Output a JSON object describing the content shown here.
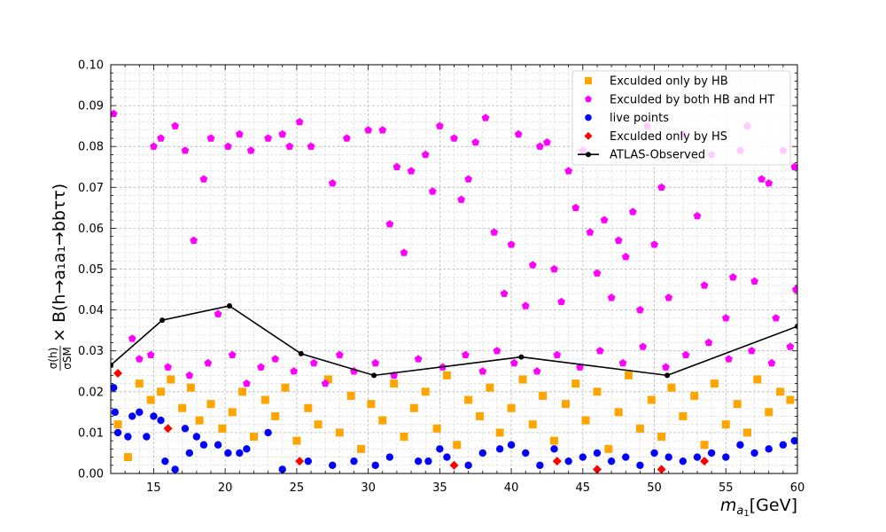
{
  "chart_data": {
    "type": "scatter",
    "xlabel": "m_{a1}[GeV]",
    "ylabel": "σ(h)/σ_SM × B(h→a1a1→bbττ)",
    "xlim": [
      12,
      60
    ],
    "ylim": [
      0.0,
      0.1
    ],
    "xticks": [
      "15",
      "20",
      "25",
      "30",
      "35",
      "40",
      "45",
      "50",
      "55",
      "60"
    ],
    "yticks": [
      "0.00",
      "0.01",
      "0.02",
      "0.03",
      "0.04",
      "0.05",
      "0.06",
      "0.07",
      "0.08",
      "0.09",
      "0.10"
    ],
    "grid": "major and minor, dashed",
    "legend_position": "top-right",
    "series": [
      {
        "name": "Exculded only by HB",
        "marker": "square",
        "color": "#FFA500",
        "note": "dense band, y roughly 0.000-0.025 across full x range",
        "points": [
          [
            12.5,
            0.012
          ],
          [
            13.2,
            0.004
          ],
          [
            14.0,
            0.022
          ],
          [
            14.8,
            0.018
          ],
          [
            15.5,
            0.02
          ],
          [
            16.2,
            0.023
          ],
          [
            17.0,
            0.016
          ],
          [
            17.6,
            0.021
          ],
          [
            18.2,
            0.013
          ],
          [
            19.0,
            0.017
          ],
          [
            19.8,
            0.011
          ],
          [
            20.5,
            0.015
          ],
          [
            21.2,
            0.02
          ],
          [
            22.0,
            0.009
          ],
          [
            22.8,
            0.018
          ],
          [
            23.5,
            0.014
          ],
          [
            24.2,
            0.021
          ],
          [
            25.0,
            0.008
          ],
          [
            25.8,
            0.016
          ],
          [
            26.5,
            0.012
          ],
          [
            27.2,
            0.023
          ],
          [
            28.0,
            0.01
          ],
          [
            28.8,
            0.019
          ],
          [
            29.5,
            0.006
          ],
          [
            30.2,
            0.017
          ],
          [
            31.0,
            0.013
          ],
          [
            31.8,
            0.022
          ],
          [
            32.5,
            0.009
          ],
          [
            33.2,
            0.016
          ],
          [
            34.0,
            0.02
          ],
          [
            34.8,
            0.011
          ],
          [
            35.5,
            0.024
          ],
          [
            36.2,
            0.007
          ],
          [
            37.0,
            0.018
          ],
          [
            37.8,
            0.014
          ],
          [
            38.5,
            0.021
          ],
          [
            39.2,
            0.01
          ],
          [
            40.0,
            0.016
          ],
          [
            40.8,
            0.023
          ],
          [
            41.5,
            0.012
          ],
          [
            42.2,
            0.019
          ],
          [
            43.0,
            0.008
          ],
          [
            43.8,
            0.017
          ],
          [
            44.5,
            0.022
          ],
          [
            45.2,
            0.013
          ],
          [
            46.0,
            0.02
          ],
          [
            46.8,
            0.006
          ],
          [
            47.5,
            0.015
          ],
          [
            48.2,
            0.024
          ],
          [
            49.0,
            0.011
          ],
          [
            49.8,
            0.018
          ],
          [
            50.5,
            0.009
          ],
          [
            51.2,
            0.021
          ],
          [
            52.0,
            0.014
          ],
          [
            52.8,
            0.019
          ],
          [
            53.5,
            0.007
          ],
          [
            54.2,
            0.022
          ],
          [
            55.0,
            0.012
          ],
          [
            55.8,
            0.017
          ],
          [
            56.5,
            0.01
          ],
          [
            57.2,
            0.023
          ],
          [
            58.0,
            0.015
          ],
          [
            58.8,
            0.02
          ],
          [
            59.5,
            0.018
          ]
        ]
      },
      {
        "name": "Exculded by both HB and HT",
        "marker": "pentagon",
        "color": "#FF00FF",
        "note": "scattered over y roughly 0.02-0.09, dense near 0.025-0.03",
        "points": [
          [
            12.2,
            0.088
          ],
          [
            13.5,
            0.033
          ],
          [
            14.0,
            0.028
          ],
          [
            15.0,
            0.08
          ],
          [
            15.5,
            0.082
          ],
          [
            16.5,
            0.085
          ],
          [
            17.2,
            0.079
          ],
          [
            17.8,
            0.057
          ],
          [
            18.5,
            0.072
          ],
          [
            19.0,
            0.082
          ],
          [
            19.5,
            0.039
          ],
          [
            20.2,
            0.08
          ],
          [
            21.0,
            0.083
          ],
          [
            21.8,
            0.079
          ],
          [
            23.0,
            0.082
          ],
          [
            24.0,
            0.083
          ],
          [
            24.5,
            0.08
          ],
          [
            25.2,
            0.086
          ],
          [
            26.0,
            0.08
          ],
          [
            27.5,
            0.071
          ],
          [
            28.5,
            0.082
          ],
          [
            30.0,
            0.084
          ],
          [
            31.0,
            0.084
          ],
          [
            31.5,
            0.061
          ],
          [
            32.0,
            0.075
          ],
          [
            32.5,
            0.054
          ],
          [
            33.0,
            0.074
          ],
          [
            34.0,
            0.078
          ],
          [
            34.5,
            0.069
          ],
          [
            35.0,
            0.085
          ],
          [
            36.0,
            0.082
          ],
          [
            36.5,
            0.067
          ],
          [
            37.0,
            0.072
          ],
          [
            37.5,
            0.081
          ],
          [
            38.2,
            0.087
          ],
          [
            38.8,
            0.059
          ],
          [
            39.5,
            0.044
          ],
          [
            40.0,
            0.056
          ],
          [
            40.5,
            0.083
          ],
          [
            41.0,
            0.041
          ],
          [
            41.5,
            0.051
          ],
          [
            42.0,
            0.08
          ],
          [
            42.5,
            0.081
          ],
          [
            43.0,
            0.05
          ],
          [
            43.5,
            0.042
          ],
          [
            44.0,
            0.074
          ],
          [
            44.5,
            0.065
          ],
          [
            45.0,
            0.079
          ],
          [
            45.5,
            0.059
          ],
          [
            46.0,
            0.049
          ],
          [
            46.5,
            0.062
          ],
          [
            47.0,
            0.043
          ],
          [
            47.5,
            0.057
          ],
          [
            48.0,
            0.053
          ],
          [
            48.5,
            0.064
          ],
          [
            49.0,
            0.04
          ],
          [
            49.5,
            0.085
          ],
          [
            50.0,
            0.056
          ],
          [
            50.5,
            0.07
          ],
          [
            51.0,
            0.043
          ],
          [
            52.0,
            0.083
          ],
          [
            53.0,
            0.063
          ],
          [
            53.5,
            0.046
          ],
          [
            54.0,
            0.078
          ],
          [
            55.0,
            0.038
          ],
          [
            55.5,
            0.048
          ],
          [
            56.0,
            0.079
          ],
          [
            56.5,
            0.085
          ],
          [
            57.0,
            0.047
          ],
          [
            57.5,
            0.072
          ],
          [
            58.0,
            0.071
          ],
          [
            58.5,
            0.038
          ],
          [
            59.0,
            0.079
          ],
          [
            59.8,
            0.075
          ],
          [
            59.9,
            0.045
          ],
          [
            14.8,
            0.029
          ],
          [
            16.0,
            0.026
          ],
          [
            17.5,
            0.024
          ],
          [
            18.8,
            0.027
          ],
          [
            20.5,
            0.029
          ],
          [
            21.5,
            0.022
          ],
          [
            22.5,
            0.026
          ],
          [
            23.5,
            0.028
          ],
          [
            24.8,
            0.025
          ],
          [
            26.2,
            0.027
          ],
          [
            27.0,
            0.022
          ],
          [
            28.0,
            0.029
          ],
          [
            29.0,
            0.025
          ],
          [
            30.5,
            0.027
          ],
          [
            31.8,
            0.024
          ],
          [
            33.5,
            0.028
          ],
          [
            35.2,
            0.026
          ],
          [
            36.8,
            0.029
          ],
          [
            38.0,
            0.025
          ],
          [
            39.0,
            0.03
          ],
          [
            40.2,
            0.027
          ],
          [
            41.8,
            0.025
          ],
          [
            43.2,
            0.029
          ],
          [
            44.8,
            0.026
          ],
          [
            46.2,
            0.03
          ],
          [
            47.8,
            0.027
          ],
          [
            49.2,
            0.031
          ],
          [
            50.8,
            0.026
          ],
          [
            52.2,
            0.029
          ],
          [
            53.8,
            0.032
          ],
          [
            55.2,
            0.028
          ],
          [
            56.8,
            0.03
          ],
          [
            58.2,
            0.027
          ],
          [
            59.5,
            0.031
          ]
        ]
      },
      {
        "name": "live points",
        "marker": "circle",
        "color": "#0000FF",
        "note": "mostly y below 0.010, a few up to ~0.02",
        "points": [
          [
            12.2,
            0.021
          ],
          [
            12.3,
            0.015
          ],
          [
            12.5,
            0.01
          ],
          [
            13.2,
            0.009
          ],
          [
            13.5,
            0.014
          ],
          [
            14.0,
            0.015
          ],
          [
            14.5,
            0.009
          ],
          [
            15.0,
            0.014
          ],
          [
            15.5,
            0.013
          ],
          [
            15.8,
            0.003
          ],
          [
            16.5,
            0.001
          ],
          [
            17.2,
            0.011
          ],
          [
            17.5,
            0.005
          ],
          [
            18.0,
            0.009
          ],
          [
            18.5,
            0.007
          ],
          [
            19.5,
            0.007
          ],
          [
            20.2,
            0.005
          ],
          [
            21.0,
            0.005
          ],
          [
            21.5,
            0.006
          ],
          [
            23.0,
            0.01
          ],
          [
            24.0,
            0.001
          ],
          [
            25.8,
            0.003
          ],
          [
            27.5,
            0.002
          ],
          [
            29.0,
            0.003
          ],
          [
            30.5,
            0.002
          ],
          [
            31.5,
            0.004
          ],
          [
            33.5,
            0.003
          ],
          [
            34.2,
            0.003
          ],
          [
            35.0,
            0.006
          ],
          [
            35.5,
            0.004
          ],
          [
            37.0,
            0.002
          ],
          [
            38.0,
            0.005
          ],
          [
            39.2,
            0.006
          ],
          [
            40.0,
            0.007
          ],
          [
            41.0,
            0.005
          ],
          [
            42.0,
            0.002
          ],
          [
            43.0,
            0.006
          ],
          [
            44.0,
            0.003
          ],
          [
            45.0,
            0.004
          ],
          [
            46.0,
            0.005
          ],
          [
            47.0,
            0.003
          ],
          [
            48.0,
            0.004
          ],
          [
            49.0,
            0.002
          ],
          [
            50.0,
            0.005
          ],
          [
            51.0,
            0.004
          ],
          [
            52.0,
            0.003
          ],
          [
            53.0,
            0.004
          ],
          [
            54.0,
            0.005
          ],
          [
            55.0,
            0.004
          ],
          [
            56.0,
            0.007
          ],
          [
            57.0,
            0.005
          ],
          [
            58.0,
            0.006
          ],
          [
            59.0,
            0.007
          ],
          [
            59.8,
            0.008
          ]
        ]
      },
      {
        "name": "Exculded only by HS",
        "marker": "diamond",
        "color": "#FF0000",
        "points": [
          [
            12.5,
            0.0245
          ],
          [
            16.0,
            0.011
          ],
          [
            25.2,
            0.003
          ],
          [
            36.0,
            0.002
          ],
          [
            43.2,
            0.003
          ],
          [
            46.0,
            0.001
          ],
          [
            50.5,
            0.001
          ],
          [
            53.5,
            0.003
          ]
        ]
      },
      {
        "name": "ATLAS-Observed",
        "marker": "line",
        "color": "#000000",
        "points": [
          [
            12.0,
            0.0265
          ],
          [
            15.6,
            0.0375
          ],
          [
            20.3,
            0.041
          ],
          [
            25.3,
            0.0293
          ],
          [
            30.4,
            0.024
          ],
          [
            40.7,
            0.0285
          ],
          [
            50.9,
            0.024
          ],
          [
            60.0,
            0.036
          ]
        ]
      }
    ]
  }
}
